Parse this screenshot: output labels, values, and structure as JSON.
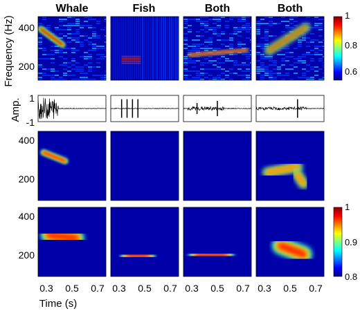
{
  "chart_data": {
    "type": "heatmap",
    "columns": [
      "Whale",
      "Fish",
      "Both",
      "Both"
    ],
    "ylabel_freq": "Frequency (Hz)",
    "ylabel_amp": "Amp.",
    "xlabel": "Time (s)",
    "freq_ticks": [
      "400",
      "200"
    ],
    "amp_ticks": [
      "1",
      "-1"
    ],
    "time_ticks": [
      "0.3",
      "0.5",
      "0.7"
    ],
    "xlim": [
      0.25,
      0.75
    ],
    "ylim_freq": [
      100,
      460
    ],
    "ylim_amp": [
      -1.2,
      1.2
    ],
    "colorbar_top": {
      "ticks": [
        "1",
        "0.8",
        "0.6"
      ],
      "range": [
        0.5,
        1.0
      ]
    },
    "colorbar_bottom": {
      "ticks": [
        "1",
        "0.9",
        "0.8"
      ],
      "range": [
        0.8,
        1.0
      ]
    },
    "colormap": [
      "#00007f",
      "#0000ff",
      "#007fff",
      "#00ffff",
      "#7fff7f",
      "#ffff00",
      "#ff7f00",
      "#ff0000",
      "#7f0000"
    ],
    "rows": [
      {
        "name": "spectrogram",
        "panels": [
          {
            "background": "speckle",
            "blobs": [
              {
                "t0": 0.27,
                "f0": 390,
                "t1": 0.43,
                "f1": 300,
                "width": 30,
                "level": 0.95
              }
            ]
          },
          {
            "background": "stripes",
            "blobs": [
              {
                "t0": 0.33,
                "f0": 215,
                "t1": 0.47,
                "f1": 215,
                "width": 55,
                "level": 0.92,
                "banded": true
              }
            ]
          },
          {
            "background": "speckle",
            "blobs": [
              {
                "t0": 0.33,
                "f0": 210,
                "t1": 0.53,
                "f1": 210,
                "width": 50,
                "level": 0.8
              },
              {
                "t0": 0.29,
                "f0": 242,
                "t1": 0.72,
                "f1": 270,
                "width": 6,
                "level": 0.92
              }
            ]
          },
          {
            "background": "speckle",
            "blobs": [
              {
                "t0": 0.34,
                "f0": 265,
                "t1": 0.62,
                "f1": 400,
                "width": 34,
                "level": 0.97
              },
              {
                "t0": 0.55,
                "f0": 210,
                "t1": 0.55,
                "f1": 170,
                "width": 55,
                "level": 0.95
              }
            ]
          }
        ]
      },
      {
        "name": "waveform",
        "panels": [
          {
            "bursts": [
              {
                "t0": 0.25,
                "t1": 0.4,
                "amp": 1.0
              }
            ],
            "spikes": []
          },
          {
            "bursts": [],
            "spikes": [
              {
                "t": 0.33,
                "amp": 0.85
              },
              {
                "t": 0.37,
                "amp": 0.85
              },
              {
                "t": 0.41,
                "amp": 0.85
              },
              {
                "t": 0.45,
                "amp": 0.85
              }
            ]
          },
          {
            "bursts": [
              {
                "t0": 0.28,
                "t1": 0.55,
                "amp": 0.18
              }
            ],
            "spikes": [
              {
                "t": 0.35,
                "amp": 0.5
              },
              {
                "t": 0.5,
                "amp": 0.7
              }
            ]
          },
          {
            "bursts": [
              {
                "t0": 0.25,
                "t1": 0.62,
                "amp": 0.15
              }
            ],
            "spikes": [
              {
                "t": 0.555,
                "amp": 0.85
              }
            ]
          }
        ]
      },
      {
        "name": "reconstruction-1",
        "panels": [
          {
            "blobs": [
              {
                "t0": 0.29,
                "f0": 350,
                "t1": 0.45,
                "f1": 305,
                "width": 28,
                "level": 0.9
              }
            ]
          },
          {
            "blobs": [
              {
                "t0": 0.36,
                "f0": 210,
                "t1": 0.6,
                "f1": 210,
                "width": 55,
                "level": 0.82
              }
            ]
          },
          {
            "blobs": [
              {
                "t0": 0.32,
                "f0": 210,
                "t1": 0.62,
                "f1": 210,
                "width": 60,
                "level": 0.85
              }
            ]
          },
          {
            "blobs": [
              {
                "t0": 0.33,
                "f0": 245,
                "t1": 0.56,
                "f1": 275,
                "width": 40,
                "level": 0.7
              },
              {
                "t0": 0.55,
                "f0": 240,
                "t1": 0.6,
                "f1": 185,
                "width": 40,
                "level": 0.75
              }
            ]
          }
        ]
      },
      {
        "name": "reconstruction-2",
        "panels": [
          {
            "blobs": [
              {
                "t0": 0.33,
                "f0": 315,
                "t1": 0.53,
                "f1": 300,
                "width": 80,
                "level": 0.85
              }
            ]
          },
          {
            "blobs": [
              {
                "t0": 0.38,
                "f0": 210,
                "t1": 0.52,
                "f1": 205,
                "width": 75,
                "level": 0.85
              }
            ]
          },
          {
            "blobs": [
              {
                "t0": 0.35,
                "f0": 210,
                "t1": 0.56,
                "f1": 215,
                "width": 80,
                "level": 0.82
              }
            ]
          },
          {
            "blobs": [
              {
                "t0": 0.43,
                "f0": 260,
                "t1": 0.6,
                "f1": 215,
                "width": 85,
                "level": 0.85
              }
            ]
          }
        ]
      }
    ]
  }
}
